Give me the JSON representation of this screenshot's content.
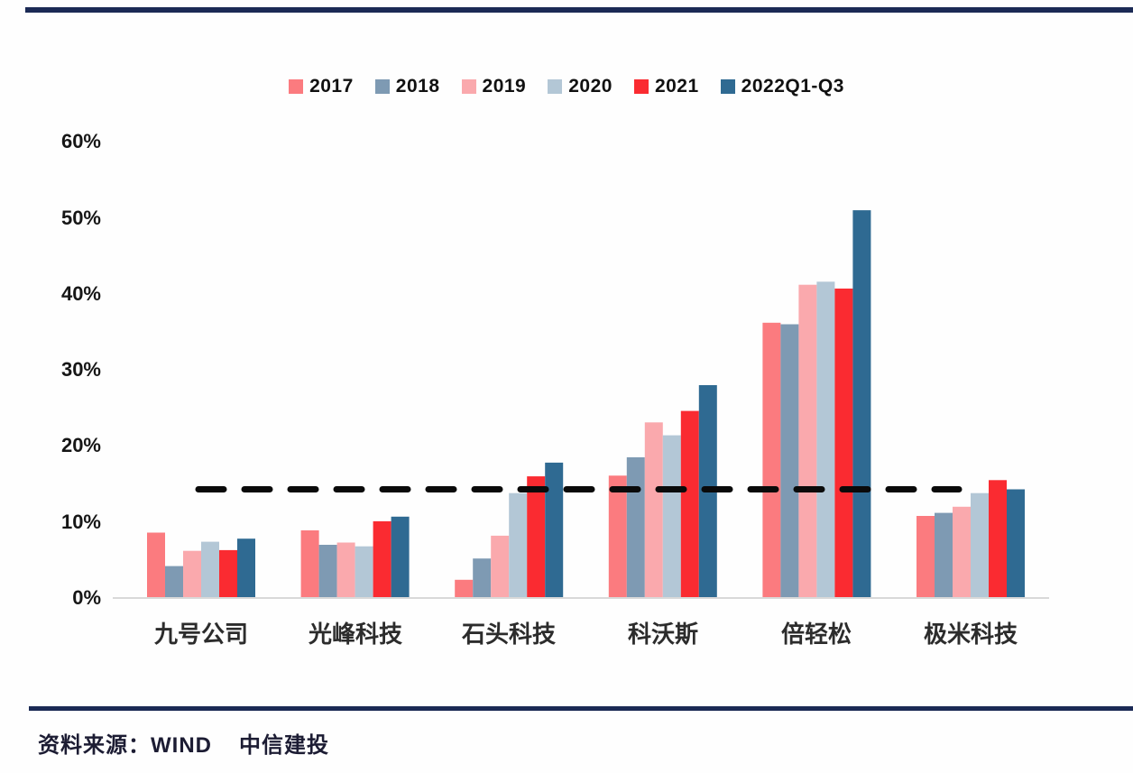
{
  "chart_data": {
    "type": "bar",
    "title": "",
    "categories": [
      "九号公司",
      "光峰科技",
      "石头科技",
      "科沃斯",
      "倍轻松",
      "极米科技"
    ],
    "series": [
      {
        "name": "2017",
        "color": "#FB7B7F",
        "values": [
          8.6,
          8.9,
          2.4,
          16.1,
          36.2,
          10.8
        ]
      },
      {
        "name": "2018",
        "color": "#7E9AB3",
        "values": [
          4.2,
          7.0,
          5.2,
          18.5,
          36.0,
          11.2
        ]
      },
      {
        "name": "2019",
        "color": "#FAA9AD",
        "values": [
          6.2,
          7.3,
          8.2,
          23.1,
          41.2,
          12.0
        ]
      },
      {
        "name": "2020",
        "color": "#B3C7D6",
        "values": [
          7.4,
          6.8,
          13.8,
          21.4,
          41.6,
          13.8
        ]
      },
      {
        "name": "2021",
        "color": "#FA2B31",
        "values": [
          6.3,
          10.1,
          16.0,
          24.6,
          40.7,
          15.5
        ]
      },
      {
        "name": "2022Q1-Q3",
        "color": "#2F6A92",
        "values": [
          7.8,
          10.7,
          17.8,
          28.0,
          51.0,
          14.3
        ]
      }
    ],
    "y_axis": {
      "tick_labels": [
        "60%",
        "50%",
        "40%",
        "30%",
        "20%",
        "10%",
        "0%"
      ],
      "tick_values": [
        60,
        50,
        40,
        30,
        20,
        10,
        0
      ],
      "ylim": [
        0,
        60
      ]
    },
    "reference_line": {
      "value": 14.3,
      "style": "dashed",
      "color": "#0A0A0A"
    },
    "legend_position": "top",
    "grid": false,
    "baseline_color": "#D9D9D9",
    "rule_color": "#1B2A55"
  },
  "footer": {
    "source_label": "资料来源：",
    "source_1": "WIND",
    "source_2": "中信建投"
  }
}
